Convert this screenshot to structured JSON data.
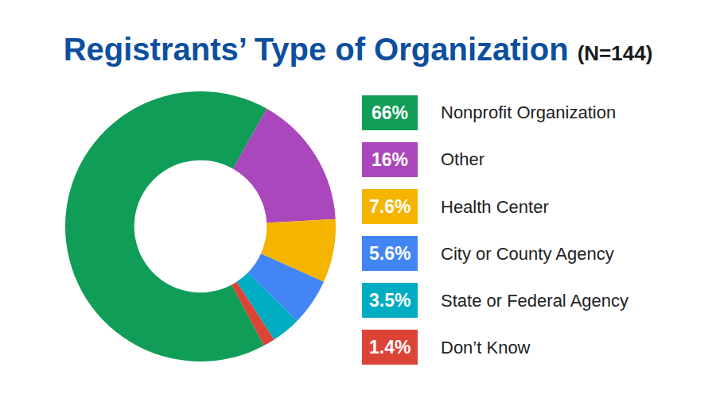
{
  "chart_data": {
    "type": "pie",
    "title": "Registrants’ Type of Organization",
    "subtitle": "(N=144)",
    "categories": [
      "Nonprofit Organization",
      "Other",
      "Health Center",
      "City or County Agency",
      "State or Federal Agency",
      "Don’t Know"
    ],
    "values": [
      66,
      16,
      7.6,
      5.6,
      3.5,
      1.4
    ],
    "value_labels": [
      "66%",
      "16%",
      "7.6%",
      "5.6%",
      "3.5%",
      "1.4%"
    ],
    "colors": [
      "#0f9d58",
      "#ab47bc",
      "#f4b400",
      "#4285f4",
      "#00acc1",
      "#db4437"
    ],
    "legend": "right",
    "data_labels": false
  }
}
